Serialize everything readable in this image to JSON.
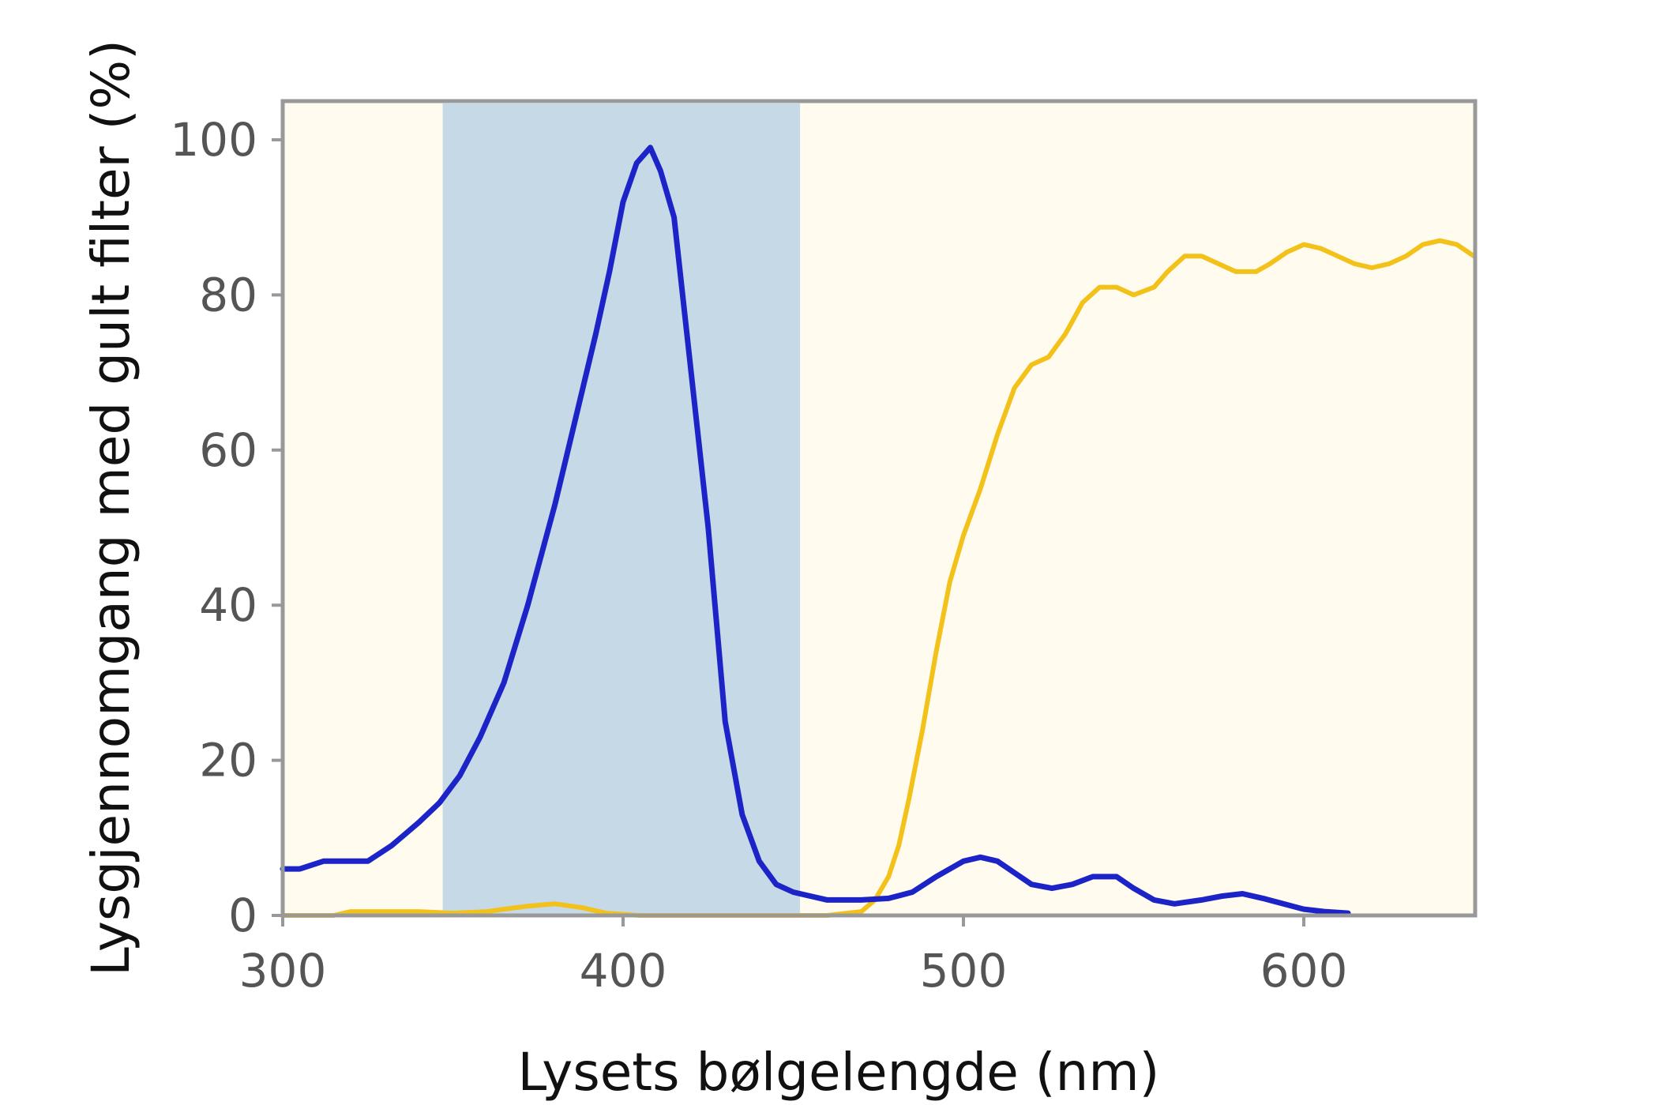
{
  "chart_data": {
    "type": "line",
    "xlabel": "Lysets bølgelengde (nm)",
    "ylabel": "Lysgjennomgang med gult filter (%)",
    "xlim": [
      300,
      650
    ],
    "ylim": [
      0,
      105
    ],
    "x_ticks": [
      "300",
      "400",
      "500",
      "600"
    ],
    "y_ticks": [
      "0",
      "20",
      "40",
      "60",
      "80",
      "100"
    ],
    "grid": false,
    "legend": "none",
    "highlight_band": {
      "x_from": 347,
      "x_to": 452,
      "color": "#c5d9e6"
    },
    "colors": {
      "plot_background": "#fffbee",
      "frame": "#999999"
    },
    "series": [
      {
        "color": "#1c24c8",
        "x": [
          300,
          305,
          312,
          318,
          325,
          332,
          340,
          346,
          352,
          358,
          365,
          372,
          380,
          386,
          392,
          396,
          400,
          404,
          408,
          411,
          415,
          420,
          425,
          430,
          435,
          440,
          445,
          450,
          455,
          460,
          465,
          470,
          478,
          485,
          492,
          500,
          505,
          510,
          515,
          520,
          526,
          532,
          538,
          545,
          550,
          556,
          562,
          570,
          576,
          582,
          588,
          594,
          600,
          606,
          613
        ],
        "values": [
          6,
          6,
          7,
          7,
          7,
          9,
          12,
          14.5,
          18,
          23,
          30,
          40,
          53,
          64,
          75,
          83,
          92,
          97,
          99,
          96,
          90,
          70,
          50,
          25,
          13,
          7,
          4,
          3,
          2.5,
          2,
          2,
          2,
          2.2,
          3,
          5,
          7,
          7.5,
          7,
          5.5,
          4,
          3.5,
          4,
          5,
          5,
          3.5,
          2,
          1.5,
          2,
          2.5,
          2.8,
          2.2,
          1.5,
          0.8,
          0.5,
          0.3
        ]
      },
      {
        "color": "#f2c21b",
        "x": [
          300,
          315,
          320,
          330,
          340,
          350,
          360,
          365,
          372,
          380,
          388,
          395,
          405,
          420,
          440,
          460,
          470,
          474,
          478,
          481,
          484,
          488,
          492,
          496,
          500,
          505,
          510,
          515,
          520,
          525,
          530,
          535,
          540,
          545,
          550,
          556,
          560,
          565,
          570,
          575,
          580,
          586,
          590,
          595,
          600,
          605,
          610,
          615,
          620,
          625,
          630,
          635,
          640,
          645,
          650
        ],
        "values": [
          0,
          0,
          0.5,
          0.5,
          0.5,
          0.3,
          0.5,
          0.8,
          1.2,
          1.5,
          1,
          0.3,
          0,
          0,
          0,
          0,
          0.5,
          2,
          5,
          9,
          15,
          24,
          34,
          43,
          49,
          55,
          62,
          68,
          71,
          72,
          75,
          79,
          81,
          81,
          80,
          81,
          83,
          85,
          85,
          84,
          83,
          83,
          84,
          85.5,
          86.5,
          86,
          85,
          84,
          83.5,
          84,
          85,
          86.5,
          87,
          86.5,
          85
        ]
      }
    ]
  }
}
